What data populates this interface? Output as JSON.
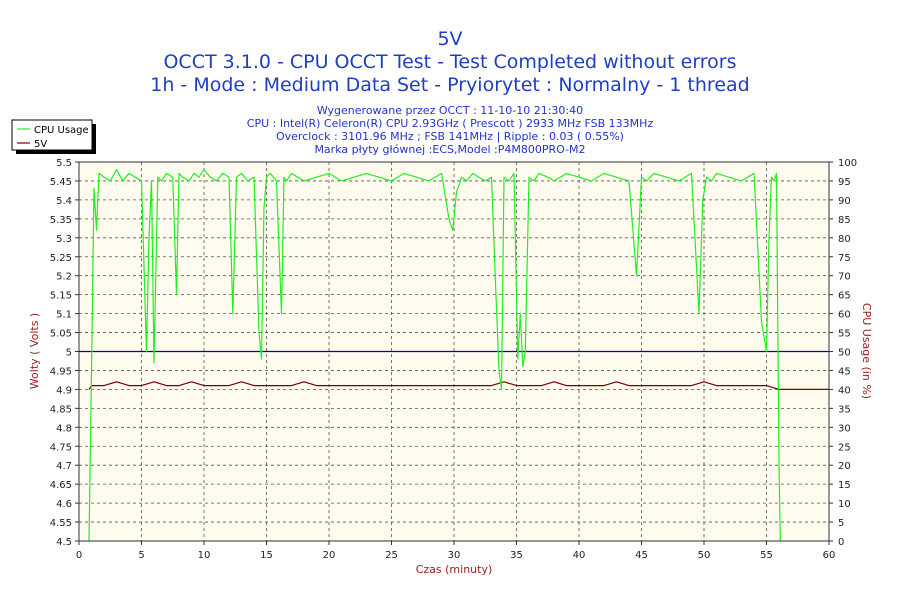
{
  "titles": [
    "5V",
    "OCCT 3.1.0 - CPU OCCT Test - Test Completed without errors",
    "1h - Mode : Medium Data Set - Pryiorytet : Normalny - 1 thread"
  ],
  "info_lines": [
    "Wygenerowane przez OCCT : 11-10-10 21:30:40",
    "CPU : Intel(R) Celeron(R) CPU 2.93GHz ( Prescott ) 2933 MHz FSB 133MHz",
    "Overclock : 3101.96 MHz ; FSB 141MHz | Ripple : 0.03 ( 0.55%)",
    "Marka płyty głównej :ECS,Model :P4M800PRO-M2"
  ],
  "colors": {
    "cpu": "#22ee22",
    "volt": "#7a0000",
    "ref": "#0000cc",
    "plot_bg": "#fffbee",
    "grid": "#555555",
    "title": "#1f3fbf",
    "info": "#2233cc",
    "axis_label": "#9a1a1a"
  },
  "chart_data": {
    "type": "line",
    "title": "5V",
    "xlabel": "Czas (minuty)",
    "ylabel_left": "Wolty ( Volts )",
    "ylabel_right": "CPU Usage (in %)",
    "xlim": [
      0,
      60
    ],
    "ylim_left": [
      4.5,
      5.5
    ],
    "ylim_right": [
      0,
      100
    ],
    "x_ticks": [
      0,
      5,
      10,
      15,
      20,
      25,
      30,
      35,
      40,
      45,
      50,
      55,
      60
    ],
    "y_left_ticks": [
      "4.5",
      "4.55",
      "4.6",
      "4.65",
      "4.7",
      "4.75",
      "4.8",
      "4.85",
      "4.9",
      "4.95",
      "5",
      "5.05",
      "5.1",
      "5.15",
      "5.2",
      "5.25",
      "5.3",
      "5.35",
      "5.4",
      "5.45",
      "5.5"
    ],
    "y_right_ticks": [
      "0",
      "5",
      "10",
      "15",
      "20",
      "25",
      "30",
      "35",
      "40",
      "45",
      "50",
      "55",
      "60",
      "65",
      "70",
      "75",
      "80",
      "85",
      "90",
      "95",
      "100"
    ],
    "grid": true,
    "legend": "top-left",
    "reference_line": {
      "axis": "left",
      "value": 5.0
    },
    "series": [
      {
        "name": "CPU Usage",
        "axis": "right",
        "x": [
          0.8,
          1.0,
          1.2,
          1.4,
          1.6,
          2,
          2.5,
          3,
          3.5,
          4,
          4.5,
          5,
          5.4,
          5.6,
          5.8,
          6.0,
          6.3,
          6.6,
          7,
          7.5,
          7.8,
          8.0,
          8.3,
          8.8,
          9.2,
          9.6,
          10,
          10.5,
          11,
          11.5,
          12,
          12.3,
          12.6,
          13,
          13.5,
          14,
          14.4,
          14.6,
          14.8,
          15.0,
          15.3,
          15.8,
          16.2,
          16.4,
          16.6,
          17,
          17.5,
          18,
          19,
          20,
          21,
          22,
          23,
          24,
          25,
          26,
          27,
          28,
          29,
          29.6,
          29.9,
          30.2,
          30.6,
          31,
          31.5,
          32,
          32.5,
          33,
          33.3,
          33.6,
          33.8,
          34.0,
          34.4,
          34.8,
          35.1,
          35.3,
          35.5,
          35.7,
          36.0,
          36.4,
          36.8,
          37.5,
          38,
          39,
          40,
          41,
          42,
          43,
          44,
          44.6,
          45.0,
          45.4,
          46,
          47,
          48,
          49,
          49.6,
          49.9,
          50.2,
          50.6,
          51,
          52,
          53,
          54,
          54.6,
          55.0,
          55.2,
          55.4,
          55.6,
          55.8,
          56.0,
          56.1
        ],
        "values": [
          0,
          45,
          93,
          82,
          97,
          96,
          95,
          98,
          95,
          97,
          96,
          95,
          50,
          80,
          95,
          47,
          96,
          95,
          97,
          96,
          65,
          97,
          96,
          95,
          97,
          96,
          98,
          96,
          95,
          97,
          96,
          60,
          96,
          97,
          95,
          96,
          55,
          48,
          88,
          96,
          97,
          95,
          60,
          96,
          95,
          97,
          96,
          95,
          96,
          97,
          95,
          96,
          97,
          96,
          95,
          97,
          96,
          95,
          97,
          85,
          82,
          92,
          96,
          95,
          97,
          96,
          95,
          96,
          70,
          45,
          40,
          96,
          95,
          97,
          48,
          60,
          46,
          50,
          96,
          95,
          97,
          96,
          95,
          97,
          96,
          95,
          97,
          96,
          95,
          70,
          96,
          95,
          97,
          96,
          95,
          97,
          60,
          90,
          96,
          95,
          97,
          96,
          95,
          97,
          58,
          50,
          80,
          96,
          95,
          97,
          20,
          0
        ]
      },
      {
        "name": "5V",
        "axis": "left",
        "x": [
          0.8,
          1.0,
          2,
          3,
          4,
          5,
          6,
          7,
          8,
          9,
          10,
          11,
          12,
          13,
          14,
          15,
          16,
          17,
          18,
          19,
          20,
          21,
          22,
          23,
          24,
          25,
          26,
          27,
          28,
          29,
          30,
          31,
          32,
          33,
          34,
          35,
          36,
          37,
          38,
          39,
          40,
          41,
          42,
          43,
          44,
          45,
          46,
          47,
          48,
          49,
          50,
          51,
          52,
          53,
          54,
          55,
          56,
          57,
          58,
          59,
          60
        ],
        "values": [
          4.9,
          4.91,
          4.91,
          4.92,
          4.91,
          4.91,
          4.92,
          4.91,
          4.91,
          4.92,
          4.91,
          4.91,
          4.91,
          4.92,
          4.91,
          4.91,
          4.91,
          4.91,
          4.92,
          4.91,
          4.91,
          4.91,
          4.91,
          4.91,
          4.91,
          4.91,
          4.91,
          4.91,
          4.91,
          4.91,
          4.91,
          4.91,
          4.91,
          4.91,
          4.92,
          4.91,
          4.91,
          4.91,
          4.92,
          4.91,
          4.91,
          4.91,
          4.91,
          4.92,
          4.91,
          4.91,
          4.91,
          4.91,
          4.91,
          4.91,
          4.92,
          4.91,
          4.91,
          4.91,
          4.91,
          4.91,
          4.9,
          4.9,
          4.9,
          4.9,
          4.9
        ]
      }
    ]
  }
}
